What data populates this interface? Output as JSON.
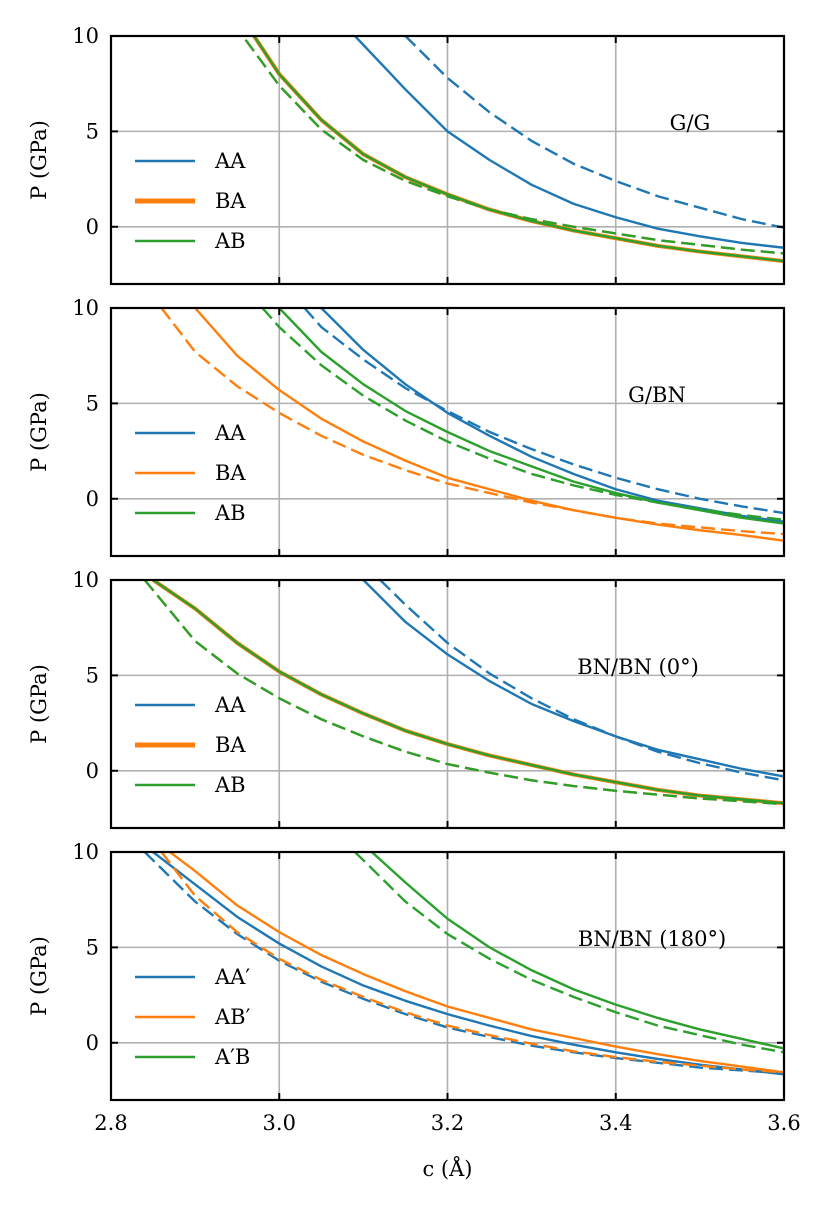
{
  "chart_data": [
    {
      "type": "line",
      "title": "G/G",
      "xlabel": "",
      "ylabel": "P (GPa)",
      "xlim": [
        2.8,
        3.6
      ],
      "ylim": [
        -3,
        10
      ],
      "xticks": [
        2.8,
        3.0,
        3.2,
        3.4,
        3.6
      ],
      "yticks": [
        0,
        5,
        10
      ],
      "grid": true,
      "legend_position": "left",
      "legend": [
        {
          "label": "AA",
          "color": "#1f77b4",
          "thick": false
        },
        {
          "label": "BA",
          "color": "#ff7f0e",
          "thick": true
        },
        {
          "label": "AB",
          "color": "#2ca02c",
          "thick": false
        }
      ],
      "series": [
        {
          "name": "AA",
          "style": "solid",
          "color": "#1f77b4",
          "x": [
            3.09,
            3.15,
            3.2,
            3.25,
            3.3,
            3.35,
            3.4,
            3.45,
            3.5,
            3.55,
            3.6
          ],
          "y": [
            10,
            7.2,
            5.0,
            3.5,
            2.2,
            1.2,
            0.5,
            -0.1,
            -0.5,
            -0.85,
            -1.1
          ]
        },
        {
          "name": "AA",
          "style": "dashed",
          "color": "#1f77b4",
          "x": [
            3.15,
            3.2,
            3.25,
            3.3,
            3.35,
            3.4,
            3.45,
            3.5,
            3.55,
            3.6
          ],
          "y": [
            10,
            7.8,
            6.0,
            4.5,
            3.3,
            2.4,
            1.6,
            1.0,
            0.4,
            -0.05
          ]
        },
        {
          "name": "BA",
          "style": "solid",
          "color": "#ff7f0e",
          "x": [
            2.97,
            3.0,
            3.05,
            3.1,
            3.15,
            3.2,
            3.25,
            3.3,
            3.35,
            3.4,
            3.45,
            3.5,
            3.55,
            3.6
          ],
          "y": [
            10,
            8.0,
            5.6,
            3.8,
            2.6,
            1.7,
            0.9,
            0.3,
            -0.2,
            -0.6,
            -1.0,
            -1.3,
            -1.55,
            -1.8
          ]
        },
        {
          "name": "BA",
          "style": "dashed",
          "color": "#ff7f0e",
          "x": [
            2.96,
            3.0,
            3.05,
            3.1,
            3.15,
            3.2,
            3.25,
            3.3,
            3.35,
            3.4,
            3.45,
            3.5,
            3.55,
            3.6
          ],
          "y": [
            9.8,
            7.4,
            5.1,
            3.5,
            2.4,
            1.6,
            0.9,
            0.4,
            0.0,
            -0.35,
            -0.7,
            -0.95,
            -1.2,
            -1.4
          ]
        },
        {
          "name": "AB",
          "style": "solid",
          "color": "#2ca02c",
          "x": [
            2.97,
            3.0,
            3.05,
            3.1,
            3.15,
            3.2,
            3.25,
            3.3,
            3.35,
            3.4,
            3.45,
            3.5,
            3.55,
            3.6
          ],
          "y": [
            10,
            8.0,
            5.6,
            3.8,
            2.6,
            1.7,
            0.9,
            0.3,
            -0.2,
            -0.6,
            -1.0,
            -1.3,
            -1.55,
            -1.8
          ]
        },
        {
          "name": "AB",
          "style": "dashed",
          "color": "#2ca02c",
          "x": [
            2.96,
            3.0,
            3.05,
            3.1,
            3.15,
            3.2,
            3.25,
            3.3,
            3.35,
            3.4,
            3.45,
            3.5,
            3.55,
            3.6
          ],
          "y": [
            9.8,
            7.4,
            5.1,
            3.5,
            2.4,
            1.6,
            0.9,
            0.4,
            0.0,
            -0.35,
            -0.7,
            -0.95,
            -1.2,
            -1.4
          ]
        }
      ]
    },
    {
      "type": "line",
      "title": "G/BN",
      "xlabel": "",
      "ylabel": "P (GPa)",
      "xlim": [
        2.8,
        3.6
      ],
      "ylim": [
        -3,
        10
      ],
      "xticks": [
        2.8,
        3.0,
        3.2,
        3.4,
        3.6
      ],
      "yticks": [
        0,
        5,
        10
      ],
      "grid": true,
      "legend_position": "left",
      "legend": [
        {
          "label": "AA",
          "color": "#1f77b4",
          "thick": false
        },
        {
          "label": "BA",
          "color": "#ff7f0e",
          "thick": false
        },
        {
          "label": "AB",
          "color": "#2ca02c",
          "thick": false
        }
      ],
      "series": [
        {
          "name": "AA",
          "style": "solid",
          "color": "#1f77b4",
          "x": [
            3.05,
            3.1,
            3.15,
            3.2,
            3.25,
            3.3,
            3.35,
            3.4,
            3.45,
            3.5,
            3.55,
            3.6
          ],
          "y": [
            10,
            7.8,
            6.0,
            4.5,
            3.3,
            2.2,
            1.3,
            0.5,
            -0.1,
            -0.5,
            -0.9,
            -1.2
          ]
        },
        {
          "name": "AA",
          "style": "dashed",
          "color": "#1f77b4",
          "x": [
            3.03,
            3.05,
            3.1,
            3.15,
            3.2,
            3.25,
            3.3,
            3.35,
            3.4,
            3.45,
            3.5,
            3.55,
            3.6
          ],
          "y": [
            10,
            9.0,
            7.3,
            5.8,
            4.6,
            3.5,
            2.6,
            1.8,
            1.1,
            0.5,
            0.0,
            -0.4,
            -0.75
          ]
        },
        {
          "name": "BA",
          "style": "solid",
          "color": "#ff7f0e",
          "x": [
            2.9,
            2.95,
            3.0,
            3.05,
            3.1,
            3.15,
            3.2,
            3.25,
            3.3,
            3.35,
            3.4,
            3.45,
            3.5,
            3.55,
            3.6
          ],
          "y": [
            10,
            7.5,
            5.7,
            4.2,
            3.0,
            2.0,
            1.1,
            0.5,
            -0.1,
            -0.6,
            -1.0,
            -1.35,
            -1.65,
            -1.9,
            -2.2
          ]
        },
        {
          "name": "BA",
          "style": "dashed",
          "color": "#ff7f0e",
          "x": [
            2.86,
            2.9,
            2.95,
            3.0,
            3.05,
            3.1,
            3.15,
            3.2,
            3.25,
            3.3,
            3.35,
            3.4,
            3.45,
            3.5,
            3.55,
            3.6
          ],
          "y": [
            10,
            7.7,
            5.9,
            4.5,
            3.3,
            2.3,
            1.5,
            0.8,
            0.3,
            -0.2,
            -0.6,
            -1.0,
            -1.3,
            -1.5,
            -1.7,
            -1.85
          ]
        },
        {
          "name": "AB",
          "style": "solid",
          "color": "#2ca02c",
          "x": [
            3.0,
            3.05,
            3.1,
            3.15,
            3.2,
            3.25,
            3.3,
            3.35,
            3.4,
            3.45,
            3.5,
            3.55,
            3.6
          ],
          "y": [
            10,
            7.7,
            6.0,
            4.6,
            3.5,
            2.5,
            1.7,
            0.9,
            0.3,
            -0.2,
            -0.6,
            -1.0,
            -1.3
          ]
        },
        {
          "name": "AB",
          "style": "dashed",
          "color": "#2ca02c",
          "x": [
            2.98,
            3.0,
            3.05,
            3.1,
            3.15,
            3.2,
            3.25,
            3.3,
            3.35,
            3.4,
            3.45,
            3.5,
            3.55,
            3.6
          ],
          "y": [
            10,
            9.0,
            7.0,
            5.4,
            4.1,
            3.0,
            2.1,
            1.3,
            0.7,
            0.2,
            -0.2,
            -0.55,
            -0.85,
            -1.1
          ]
        }
      ]
    },
    {
      "type": "line",
      "title": "BN/BN (0°)",
      "xlabel": "",
      "ylabel": "P (GPa)",
      "xlim": [
        2.8,
        3.6
      ],
      "ylim": [
        -3,
        10
      ],
      "xticks": [
        2.8,
        3.0,
        3.2,
        3.4,
        3.6
      ],
      "yticks": [
        0,
        5,
        10
      ],
      "grid": true,
      "legend_position": "left",
      "legend": [
        {
          "label": "AA",
          "color": "#1f77b4",
          "thick": false
        },
        {
          "label": "BA",
          "color": "#ff7f0e",
          "thick": true
        },
        {
          "label": "AB",
          "color": "#2ca02c",
          "thick": false
        }
      ],
      "series": [
        {
          "name": "AA",
          "style": "solid",
          "color": "#1f77b4",
          "x": [
            3.1,
            3.15,
            3.2,
            3.25,
            3.3,
            3.35,
            3.4,
            3.45,
            3.5,
            3.55,
            3.6
          ],
          "y": [
            10,
            7.8,
            6.1,
            4.7,
            3.5,
            2.6,
            1.8,
            1.1,
            0.6,
            0.1,
            -0.3
          ]
        },
        {
          "name": "AA",
          "style": "dashed",
          "color": "#1f77b4",
          "x": [
            3.12,
            3.15,
            3.2,
            3.25,
            3.3,
            3.35,
            3.4,
            3.45,
            3.5,
            3.55,
            3.6
          ],
          "y": [
            10,
            8.7,
            6.7,
            5.1,
            3.8,
            2.7,
            1.8,
            1.0,
            0.4,
            -0.1,
            -0.5
          ]
        },
        {
          "name": "BA",
          "style": "solid",
          "color": "#ff7f0e",
          "x": [
            2.85,
            2.9,
            2.95,
            3.0,
            3.05,
            3.1,
            3.15,
            3.2,
            3.25,
            3.3,
            3.35,
            3.4,
            3.45,
            3.5,
            3.55,
            3.6
          ],
          "y": [
            10,
            8.5,
            6.7,
            5.2,
            4.0,
            3.0,
            2.1,
            1.4,
            0.8,
            0.3,
            -0.2,
            -0.6,
            -1.0,
            -1.3,
            -1.5,
            -1.7
          ]
        },
        {
          "name": "BA",
          "style": "dashed",
          "color": "#ff7f0e",
          "x": [
            2.84,
            2.9,
            2.95,
            3.0,
            3.05,
            3.1,
            3.15,
            3.2,
            3.25,
            3.3,
            3.35,
            3.4,
            3.45,
            3.5,
            3.55,
            3.6
          ],
          "y": [
            10,
            6.8,
            5.1,
            3.8,
            2.7,
            1.8,
            1.0,
            0.35,
            -0.1,
            -0.5,
            -0.8,
            -1.05,
            -1.25,
            -1.45,
            -1.6,
            -1.75
          ]
        },
        {
          "name": "AB",
          "style": "solid",
          "color": "#2ca02c",
          "x": [
            2.85,
            2.9,
            2.95,
            3.0,
            3.05,
            3.1,
            3.15,
            3.2,
            3.25,
            3.3,
            3.35,
            3.4,
            3.45,
            3.5,
            3.55,
            3.6
          ],
          "y": [
            10,
            8.5,
            6.7,
            5.2,
            4.0,
            3.0,
            2.1,
            1.4,
            0.8,
            0.3,
            -0.2,
            -0.6,
            -1.0,
            -1.3,
            -1.5,
            -1.7
          ]
        },
        {
          "name": "AB",
          "style": "dashed",
          "color": "#2ca02c",
          "x": [
            2.84,
            2.9,
            2.95,
            3.0,
            3.05,
            3.1,
            3.15,
            3.2,
            3.25,
            3.3,
            3.35,
            3.4,
            3.45,
            3.5,
            3.55,
            3.6
          ],
          "y": [
            10,
            6.8,
            5.1,
            3.8,
            2.7,
            1.8,
            1.0,
            0.35,
            -0.1,
            -0.5,
            -0.8,
            -1.05,
            -1.25,
            -1.45,
            -1.6,
            -1.75
          ]
        }
      ]
    },
    {
      "type": "line",
      "title": "BN/BN (180°)",
      "xlabel": "c (Å)",
      "ylabel": "P (GPa)",
      "xlim": [
        2.8,
        3.6
      ],
      "ylim": [
        -3,
        10
      ],
      "xticks": [
        2.8,
        3.0,
        3.2,
        3.4,
        3.6
      ],
      "xticklabels": [
        "2.8",
        "3.0",
        "3.2",
        "3.4",
        "3.6"
      ],
      "yticks": [
        0,
        5,
        10
      ],
      "grid": true,
      "legend_position": "left",
      "legend": [
        {
          "label": "AA′",
          "color": "#1f77b4",
          "thick": false
        },
        {
          "label": "AB′",
          "color": "#ff7f0e",
          "thick": false
        },
        {
          "label": "A′B",
          "color": "#2ca02c",
          "thick": false
        }
      ],
      "series": [
        {
          "name": "AA′",
          "style": "solid",
          "color": "#1f77b4",
          "x": [
            2.85,
            2.9,
            2.95,
            3.0,
            3.05,
            3.1,
            3.15,
            3.2,
            3.25,
            3.3,
            3.35,
            3.4,
            3.45,
            3.5,
            3.55,
            3.6
          ],
          "y": [
            10,
            8.3,
            6.6,
            5.2,
            4.0,
            3.0,
            2.2,
            1.5,
            0.9,
            0.35,
            -0.1,
            -0.5,
            -0.85,
            -1.15,
            -1.4,
            -1.65
          ]
        },
        {
          "name": "AA′",
          "style": "dashed",
          "color": "#1f77b4",
          "x": [
            2.84,
            2.9,
            2.95,
            3.0,
            3.05,
            3.1,
            3.15,
            3.2,
            3.25,
            3.3,
            3.35,
            3.4,
            3.45,
            3.5,
            3.55,
            3.6
          ],
          "y": [
            10,
            7.4,
            5.7,
            4.3,
            3.2,
            2.3,
            1.5,
            0.8,
            0.3,
            -0.15,
            -0.5,
            -0.8,
            -1.05,
            -1.3,
            -1.45,
            -1.6
          ]
        },
        {
          "name": "AB′",
          "style": "solid",
          "color": "#ff7f0e",
          "x": [
            2.87,
            2.9,
            2.95,
            3.0,
            3.05,
            3.1,
            3.15,
            3.2,
            3.25,
            3.3,
            3.35,
            3.4,
            3.45,
            3.5,
            3.55,
            3.6
          ],
          "y": [
            10,
            9.0,
            7.2,
            5.8,
            4.6,
            3.6,
            2.7,
            1.9,
            1.3,
            0.7,
            0.25,
            -0.2,
            -0.6,
            -0.95,
            -1.25,
            -1.55
          ]
        },
        {
          "name": "AB′",
          "style": "dashed",
          "color": "#ff7f0e",
          "x": [
            2.86,
            2.9,
            2.95,
            3.0,
            3.05,
            3.1,
            3.15,
            3.2,
            3.25,
            3.3,
            3.35,
            3.4,
            3.45,
            3.5,
            3.55,
            3.6
          ],
          "y": [
            10,
            7.7,
            5.8,
            4.4,
            3.3,
            2.4,
            1.6,
            0.9,
            0.4,
            -0.05,
            -0.45,
            -0.75,
            -1.0,
            -1.2,
            -1.4,
            -1.55
          ]
        },
        {
          "name": "A′B",
          "style": "solid",
          "color": "#2ca02c",
          "x": [
            3.11,
            3.15,
            3.2,
            3.25,
            3.3,
            3.35,
            3.4,
            3.45,
            3.5,
            3.55,
            3.6
          ],
          "y": [
            10,
            8.4,
            6.5,
            5.0,
            3.8,
            2.8,
            2.0,
            1.3,
            0.7,
            0.2,
            -0.3
          ]
        },
        {
          "name": "A′B",
          "style": "dashed",
          "color": "#2ca02c",
          "x": [
            3.09,
            3.15,
            3.2,
            3.25,
            3.3,
            3.35,
            3.4,
            3.45,
            3.5,
            3.55,
            3.6
          ],
          "y": [
            10,
            7.4,
            5.7,
            4.4,
            3.3,
            2.4,
            1.6,
            0.9,
            0.4,
            -0.1,
            -0.5
          ]
        }
      ]
    }
  ]
}
